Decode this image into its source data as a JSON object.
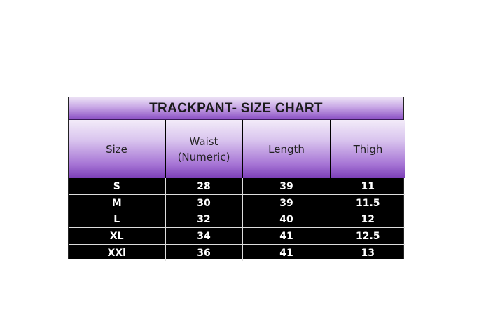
{
  "title": "TRACKPANT- SIZE CHART",
  "columns": [
    "Size",
    "Waist (Numeric)",
    "Length",
    "Thigh"
  ],
  "column_lines": [
    [
      "Size"
    ],
    [
      "Waist",
      "(Numeric)"
    ],
    [
      "Length"
    ],
    [
      "Thigh"
    ]
  ],
  "rows": [
    [
      "S",
      "28",
      "39",
      "11"
    ],
    [
      "M",
      "30",
      "39",
      "11.5"
    ],
    [
      "L",
      "32",
      "40",
      "12"
    ],
    [
      "XL",
      "34",
      "41",
      "12.5"
    ],
    [
      "XXl",
      "36",
      "41",
      "13"
    ]
  ],
  "colors": {
    "header_purple": "#7c3fb8",
    "body_background": "#000000",
    "body_text": "#ffffff"
  }
}
